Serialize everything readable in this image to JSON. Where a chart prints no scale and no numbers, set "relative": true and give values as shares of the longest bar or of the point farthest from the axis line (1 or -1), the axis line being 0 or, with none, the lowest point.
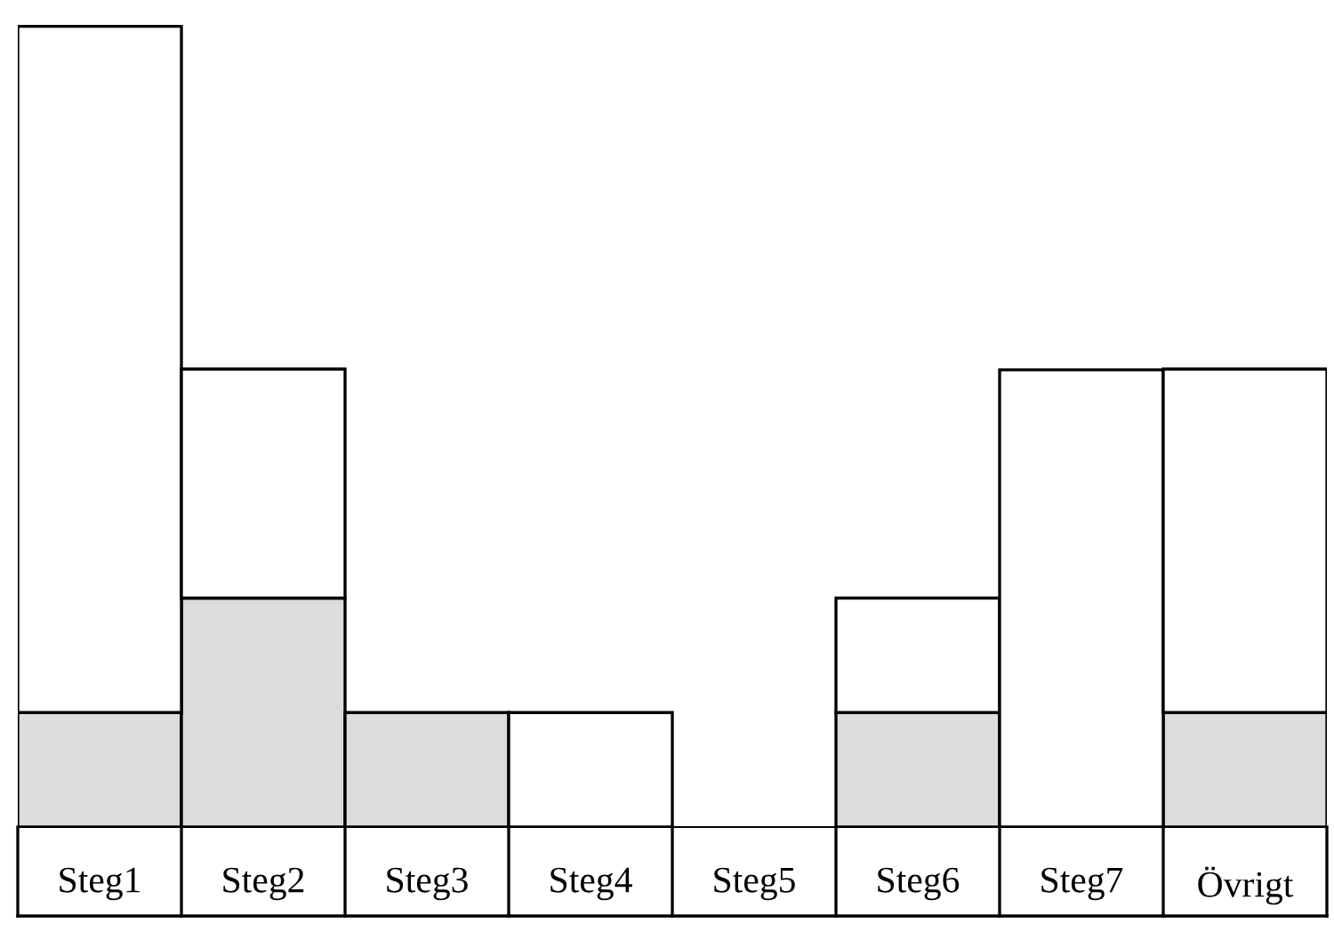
{
  "chart_data": {
    "type": "bar",
    "stacked": true,
    "relative": true,
    "grid": false,
    "categories": [
      "Steg1",
      "Steg2",
      "Steg3",
      "Steg4",
      "Steg5",
      "Steg6",
      "Steg7",
      "Övrigt"
    ],
    "series": [
      {
        "color": "#dcdcdc",
        "values": [
          0.143,
          0.286,
          0.143,
          0,
          0,
          0.143,
          0,
          0.143
        ]
      },
      {
        "color": "#ffffff",
        "values": [
          0.857,
          0.286,
          0,
          0.143,
          0,
          0.143,
          0.571,
          0.429
        ]
      }
    ]
  }
}
